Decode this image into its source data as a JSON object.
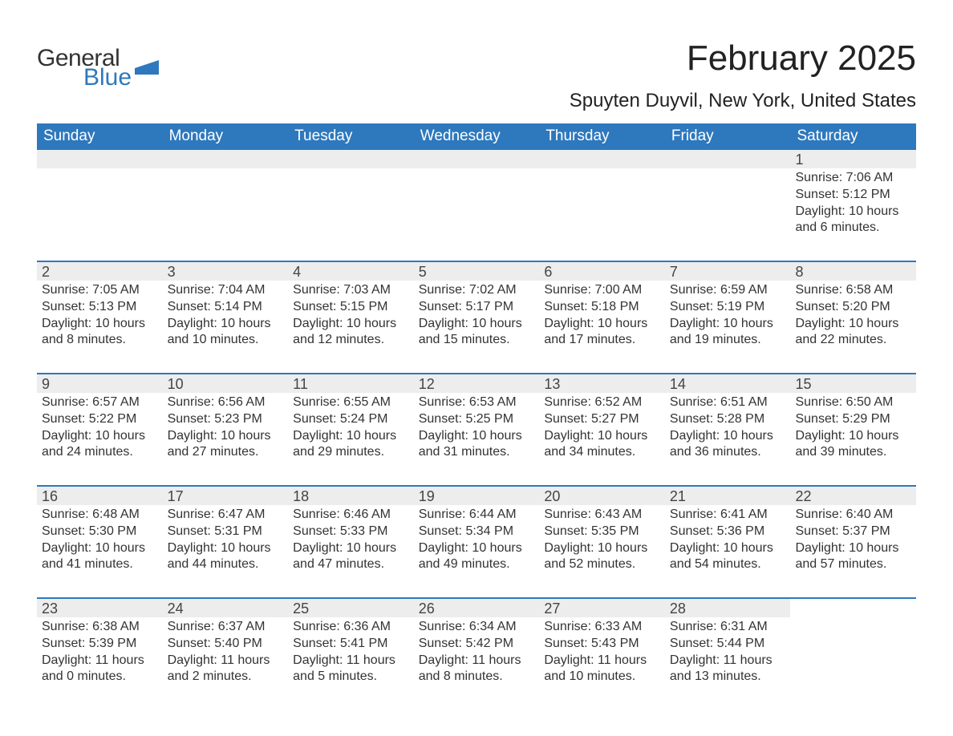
{
  "logo": {
    "general": "General",
    "blue": "Blue",
    "shape_color": "#2e78bd"
  },
  "title": "February 2025",
  "location": "Spuyten Duyvil, New York, United States",
  "colors": {
    "header_bg": "#2e78bd",
    "header_text": "#ffffff",
    "daynum_bg": "#ededed",
    "week_border": "#2e78bd",
    "body_text": "#333333"
  },
  "day_headers": [
    "Sunday",
    "Monday",
    "Tuesday",
    "Wednesday",
    "Thursday",
    "Friday",
    "Saturday"
  ],
  "weeks": [
    [
      {
        "blank": true,
        "bar": true
      },
      {
        "blank": true,
        "bar": true
      },
      {
        "blank": true,
        "bar": true
      },
      {
        "blank": true,
        "bar": true
      },
      {
        "blank": true,
        "bar": true
      },
      {
        "blank": true,
        "bar": true
      },
      {
        "day": "1",
        "sunrise": "Sunrise: 7:06 AM",
        "sunset": "Sunset: 5:12 PM",
        "daylight1": "Daylight: 10 hours",
        "daylight2": "and 6 minutes."
      }
    ],
    [
      {
        "day": "2",
        "sunrise": "Sunrise: 7:05 AM",
        "sunset": "Sunset: 5:13 PM",
        "daylight1": "Daylight: 10 hours",
        "daylight2": "and 8 minutes."
      },
      {
        "day": "3",
        "sunrise": "Sunrise: 7:04 AM",
        "sunset": "Sunset: 5:14 PM",
        "daylight1": "Daylight: 10 hours",
        "daylight2": "and 10 minutes."
      },
      {
        "day": "4",
        "sunrise": "Sunrise: 7:03 AM",
        "sunset": "Sunset: 5:15 PM",
        "daylight1": "Daylight: 10 hours",
        "daylight2": "and 12 minutes."
      },
      {
        "day": "5",
        "sunrise": "Sunrise: 7:02 AM",
        "sunset": "Sunset: 5:17 PM",
        "daylight1": "Daylight: 10 hours",
        "daylight2": "and 15 minutes."
      },
      {
        "day": "6",
        "sunrise": "Sunrise: 7:00 AM",
        "sunset": "Sunset: 5:18 PM",
        "daylight1": "Daylight: 10 hours",
        "daylight2": "and 17 minutes."
      },
      {
        "day": "7",
        "sunrise": "Sunrise: 6:59 AM",
        "sunset": "Sunset: 5:19 PM",
        "daylight1": "Daylight: 10 hours",
        "daylight2": "and 19 minutes."
      },
      {
        "day": "8",
        "sunrise": "Sunrise: 6:58 AM",
        "sunset": "Sunset: 5:20 PM",
        "daylight1": "Daylight: 10 hours",
        "daylight2": "and 22 minutes."
      }
    ],
    [
      {
        "day": "9",
        "sunrise": "Sunrise: 6:57 AM",
        "sunset": "Sunset: 5:22 PM",
        "daylight1": "Daylight: 10 hours",
        "daylight2": "and 24 minutes."
      },
      {
        "day": "10",
        "sunrise": "Sunrise: 6:56 AM",
        "sunset": "Sunset: 5:23 PM",
        "daylight1": "Daylight: 10 hours",
        "daylight2": "and 27 minutes."
      },
      {
        "day": "11",
        "sunrise": "Sunrise: 6:55 AM",
        "sunset": "Sunset: 5:24 PM",
        "daylight1": "Daylight: 10 hours",
        "daylight2": "and 29 minutes."
      },
      {
        "day": "12",
        "sunrise": "Sunrise: 6:53 AM",
        "sunset": "Sunset: 5:25 PM",
        "daylight1": "Daylight: 10 hours",
        "daylight2": "and 31 minutes."
      },
      {
        "day": "13",
        "sunrise": "Sunrise: 6:52 AM",
        "sunset": "Sunset: 5:27 PM",
        "daylight1": "Daylight: 10 hours",
        "daylight2": "and 34 minutes."
      },
      {
        "day": "14",
        "sunrise": "Sunrise: 6:51 AM",
        "sunset": "Sunset: 5:28 PM",
        "daylight1": "Daylight: 10 hours",
        "daylight2": "and 36 minutes."
      },
      {
        "day": "15",
        "sunrise": "Sunrise: 6:50 AM",
        "sunset": "Sunset: 5:29 PM",
        "daylight1": "Daylight: 10 hours",
        "daylight2": "and 39 minutes."
      }
    ],
    [
      {
        "day": "16",
        "sunrise": "Sunrise: 6:48 AM",
        "sunset": "Sunset: 5:30 PM",
        "daylight1": "Daylight: 10 hours",
        "daylight2": "and 41 minutes."
      },
      {
        "day": "17",
        "sunrise": "Sunrise: 6:47 AM",
        "sunset": "Sunset: 5:31 PM",
        "daylight1": "Daylight: 10 hours",
        "daylight2": "and 44 minutes."
      },
      {
        "day": "18",
        "sunrise": "Sunrise: 6:46 AM",
        "sunset": "Sunset: 5:33 PM",
        "daylight1": "Daylight: 10 hours",
        "daylight2": "and 47 minutes."
      },
      {
        "day": "19",
        "sunrise": "Sunrise: 6:44 AM",
        "sunset": "Sunset: 5:34 PM",
        "daylight1": "Daylight: 10 hours",
        "daylight2": "and 49 minutes."
      },
      {
        "day": "20",
        "sunrise": "Sunrise: 6:43 AM",
        "sunset": "Sunset: 5:35 PM",
        "daylight1": "Daylight: 10 hours",
        "daylight2": "and 52 minutes."
      },
      {
        "day": "21",
        "sunrise": "Sunrise: 6:41 AM",
        "sunset": "Sunset: 5:36 PM",
        "daylight1": "Daylight: 10 hours",
        "daylight2": "and 54 minutes."
      },
      {
        "day": "22",
        "sunrise": "Sunrise: 6:40 AM",
        "sunset": "Sunset: 5:37 PM",
        "daylight1": "Daylight: 10 hours",
        "daylight2": "and 57 minutes."
      }
    ],
    [
      {
        "day": "23",
        "sunrise": "Sunrise: 6:38 AM",
        "sunset": "Sunset: 5:39 PM",
        "daylight1": "Daylight: 11 hours",
        "daylight2": "and 0 minutes."
      },
      {
        "day": "24",
        "sunrise": "Sunrise: 6:37 AM",
        "sunset": "Sunset: 5:40 PM",
        "daylight1": "Daylight: 11 hours",
        "daylight2": "and 2 minutes."
      },
      {
        "day": "25",
        "sunrise": "Sunrise: 6:36 AM",
        "sunset": "Sunset: 5:41 PM",
        "daylight1": "Daylight: 11 hours",
        "daylight2": "and 5 minutes."
      },
      {
        "day": "26",
        "sunrise": "Sunrise: 6:34 AM",
        "sunset": "Sunset: 5:42 PM",
        "daylight1": "Daylight: 11 hours",
        "daylight2": "and 8 minutes."
      },
      {
        "day": "27",
        "sunrise": "Sunrise: 6:33 AM",
        "sunset": "Sunset: 5:43 PM",
        "daylight1": "Daylight: 11 hours",
        "daylight2": "and 10 minutes."
      },
      {
        "day": "28",
        "sunrise": "Sunrise: 6:31 AM",
        "sunset": "Sunset: 5:44 PM",
        "daylight1": "Daylight: 11 hours",
        "daylight2": "and 13 minutes."
      },
      {
        "blank": true,
        "bar": false
      }
    ]
  ]
}
